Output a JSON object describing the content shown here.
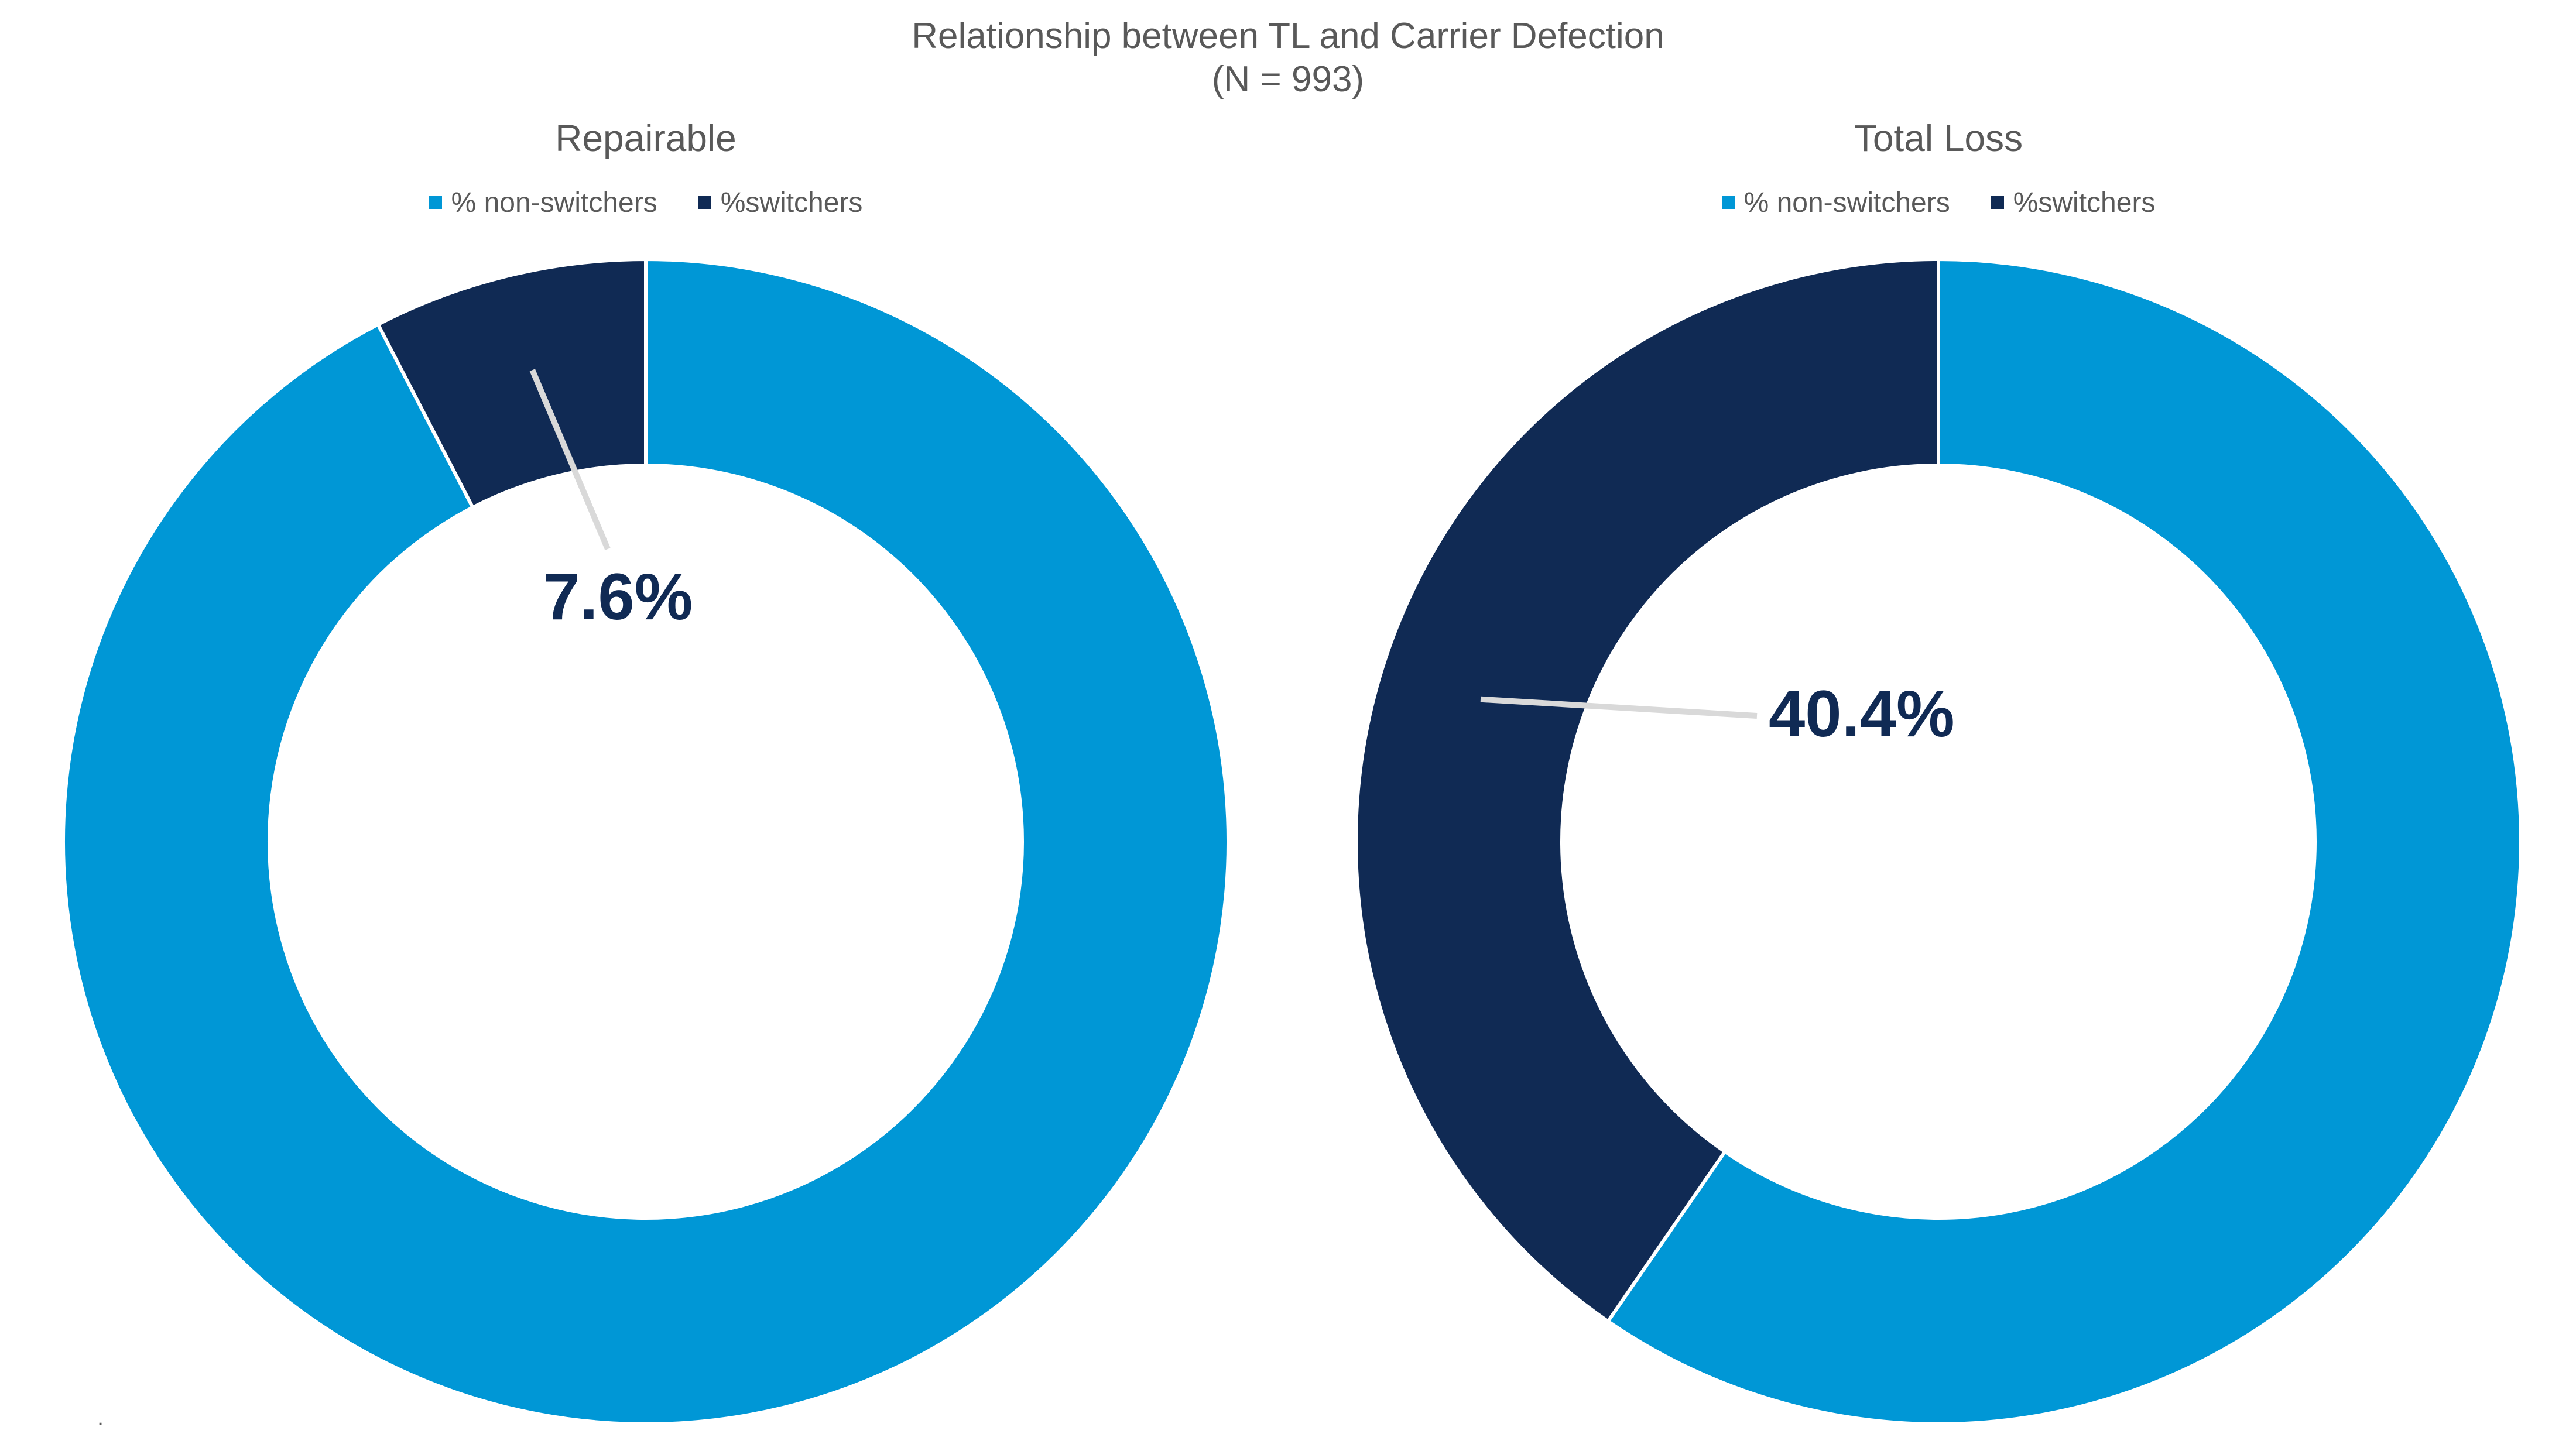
{
  "title": "Relationship between TL and Carrier Defection",
  "subtitle": "(N = 993)",
  "footnote": ".",
  "colors": {
    "non_switchers": "#0097d6",
    "switchers": "#102a54",
    "leader": "#d9d9d9",
    "label": "#102a54"
  },
  "chart_data": [
    {
      "type": "pie",
      "style": "donut",
      "title": "Repairable",
      "legend": [
        "% non-switchers",
        "%switchers"
      ],
      "legend_position": "top",
      "slices": [
        {
          "name": "% non-switchers",
          "value": 92.4,
          "color": "#0097d6"
        },
        {
          "name": "%switchers",
          "value": 7.6,
          "color": "#102a54",
          "label": "7.6%"
        }
      ]
    },
    {
      "type": "pie",
      "style": "donut",
      "title": "Total Loss",
      "legend": [
        "% non-switchers",
        "%switchers"
      ],
      "legend_position": "top",
      "slices": [
        {
          "name": "% non-switchers",
          "value": 59.6,
          "color": "#0097d6"
        },
        {
          "name": "%switchers",
          "value": 40.4,
          "color": "#102a54",
          "label": "40.4%"
        }
      ]
    }
  ]
}
